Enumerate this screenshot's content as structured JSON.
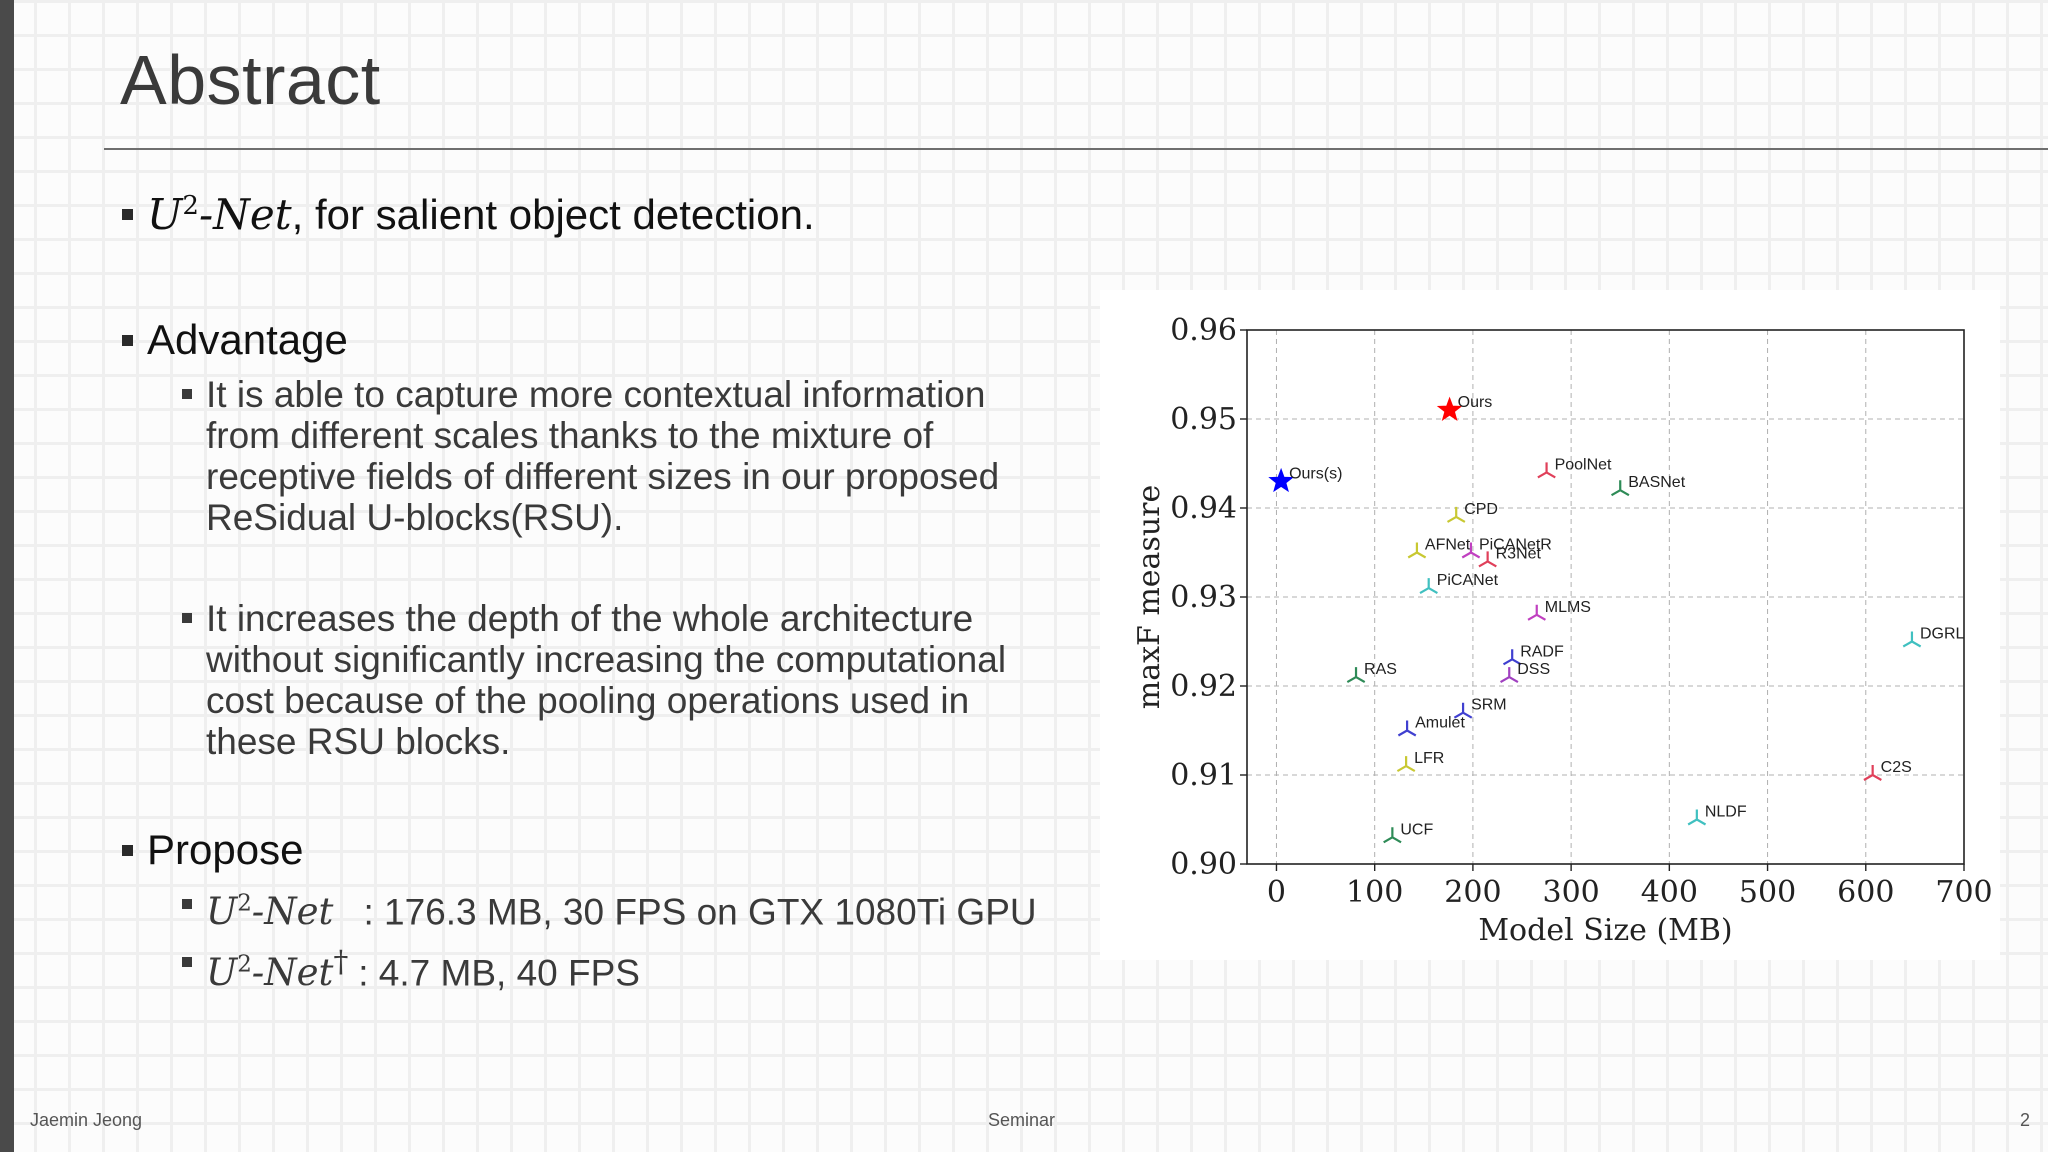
{
  "title": "Abstract",
  "bullets": {
    "intro": {
      "math": "U",
      "sup": "2",
      "math2": "-Net",
      "text": ", for salient object detection."
    },
    "advantage": {
      "heading": "Advantage",
      "items": [
        "It is able to capture more contextual information\nfrom different scales thanks to the mixture of\nreceptive fields of different sizes in our proposed\nReSidual U-blocks(RSU).",
        "It increases the depth of the whole architecture\nwithout significantly increasing the computational\ncost because of the pooling operations used in\nthese RSU blocks."
      ]
    },
    "propose": {
      "heading": "Propose",
      "items": [
        {
          "math": "U",
          "sup": "2",
          "math2": "-Net",
          "dagger": "",
          "text": ": 176.3 MB, 30 FPS on GTX 1080Ti GPU"
        },
        {
          "math": "U",
          "sup": "2",
          "math2": "-Net",
          "dagger": "†",
          "text": ":  4.7 MB, 40 FPS"
        }
      ]
    }
  },
  "chart_data": {
    "type": "scatter",
    "xlabel": "Model Size (MB)",
    "ylabel": "maxF measure",
    "xlim": [
      -30,
      700
    ],
    "ylim": [
      0.9,
      0.96
    ],
    "xticks": [
      0,
      100,
      200,
      300,
      400,
      500,
      600,
      700
    ],
    "yticks": [
      "0.90",
      "0.91",
      "0.92",
      "0.93",
      "0.94",
      "0.95",
      "0.96"
    ],
    "grid": true,
    "points": [
      {
        "label": "Ours",
        "x": 176.3,
        "y": 0.951,
        "color": "#ff0000",
        "marker": "star"
      },
      {
        "label": "Ours(s)",
        "x": 4.7,
        "y": 0.943,
        "color": "#0000ff",
        "marker": "star"
      },
      {
        "label": "PoolNet",
        "x": 275,
        "y": 0.944,
        "color": "#e0405a",
        "marker": "tri"
      },
      {
        "label": "BASNet",
        "x": 350,
        "y": 0.942,
        "color": "#2e8b57",
        "marker": "tri"
      },
      {
        "label": "CPD",
        "x": 183,
        "y": 0.939,
        "color": "#c8c832",
        "marker": "tri"
      },
      {
        "label": "AFNet",
        "x": 143,
        "y": 0.935,
        "color": "#c8c832",
        "marker": "tri"
      },
      {
        "label": "PiCANetR",
        "x": 198,
        "y": 0.935,
        "color": "#c040c0",
        "marker": "tri"
      },
      {
        "label": "R3Net",
        "x": 215,
        "y": 0.934,
        "color": "#e0405a",
        "marker": "tri"
      },
      {
        "label": "PiCANet",
        "x": 155,
        "y": 0.931,
        "color": "#40c0c0",
        "marker": "tri"
      },
      {
        "label": "MLMS",
        "x": 265,
        "y": 0.928,
        "color": "#c040c0",
        "marker": "tri"
      },
      {
        "label": "RADF",
        "x": 240,
        "y": 0.923,
        "color": "#4040d0",
        "marker": "tri"
      },
      {
        "label": "DSS",
        "x": 237,
        "y": 0.921,
        "color": "#a040c0",
        "marker": "tri"
      },
      {
        "label": "RAS",
        "x": 81,
        "y": 0.921,
        "color": "#2e8b57",
        "marker": "tri"
      },
      {
        "label": "SRM",
        "x": 190,
        "y": 0.917,
        "color": "#4040d0",
        "marker": "tri"
      },
      {
        "label": "Amulet",
        "x": 133,
        "y": 0.915,
        "color": "#4040d0",
        "marker": "tri"
      },
      {
        "label": "LFR",
        "x": 132,
        "y": 0.911,
        "color": "#c8c832",
        "marker": "tri"
      },
      {
        "label": "UCF",
        "x": 118,
        "y": 0.903,
        "color": "#2e8b57",
        "marker": "tri"
      },
      {
        "label": "NLDF",
        "x": 428,
        "y": 0.905,
        "color": "#40c0c0",
        "marker": "tri"
      },
      {
        "label": "C2S",
        "x": 607,
        "y": 0.91,
        "color": "#e0405a",
        "marker": "tri"
      },
      {
        "label": "DGRL",
        "x": 647,
        "y": 0.925,
        "color": "#40c0c0",
        "marker": "tri"
      }
    ]
  },
  "footer": {
    "author": "Jaemin Jeong",
    "center": "Seminar",
    "page": "2"
  }
}
